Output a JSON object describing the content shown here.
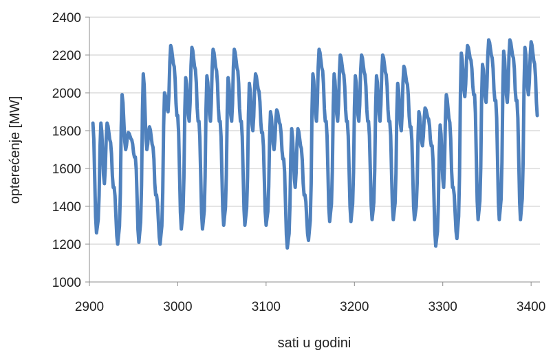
{
  "chart_data": {
    "type": "line",
    "title": "",
    "xlabel": "sati u godini",
    "ylabel": "opterećenje [MW]",
    "xlim": [
      2900,
      3410
    ],
    "ylim": [
      1000,
      2400
    ],
    "xticks": [
      2900,
      3000,
      3100,
      3200,
      3300,
      3400
    ],
    "yticks": [
      1000,
      1200,
      1400,
      1600,
      1800,
      2000,
      2200,
      2400
    ],
    "grid": "horizontal",
    "legend": "none",
    "line_color": "#4F81BD",
    "days": [
      {
        "start": 2904,
        "min": 1260,
        "p1": 1840,
        "dip": 1520,
        "p2": 1840,
        "end_dip": 1500
      },
      {
        "start": 2928,
        "min": 1200,
        "p1": 1990,
        "dip": 1700,
        "p2": 1790,
        "end_dip": 1660
      },
      {
        "start": 2952,
        "min": 1210,
        "p1": 2100,
        "dip": 1700,
        "p2": 1820,
        "end_dip": 1460
      },
      {
        "start": 2976,
        "min": 1200,
        "p1": 2000,
        "dip": 1900,
        "p2": 2250,
        "end_dip": 1880
      },
      {
        "start": 3000,
        "min": 1280,
        "p1": 2080,
        "dip": 1850,
        "p2": 2240,
        "end_dip": 1850
      },
      {
        "start": 3024,
        "min": 1280,
        "p1": 2090,
        "dip": 1850,
        "p2": 2230,
        "end_dip": 1850
      },
      {
        "start": 3048,
        "min": 1300,
        "p1": 2080,
        "dip": 1850,
        "p2": 2230,
        "end_dip": 1850
      },
      {
        "start": 3072,
        "min": 1300,
        "p1": 2050,
        "dip": 1800,
        "p2": 2100,
        "end_dip": 1790
      },
      {
        "start": 3096,
        "min": 1300,
        "p1": 1900,
        "dip": 1700,
        "p2": 1910,
        "end_dip": 1650
      },
      {
        "start": 3120,
        "min": 1180,
        "p1": 1810,
        "dip": 1500,
        "p2": 1810,
        "end_dip": 1460
      },
      {
        "start": 3144,
        "min": 1220,
        "p1": 2100,
        "dip": 1850,
        "p2": 2230,
        "end_dip": 1850
      },
      {
        "start": 3168,
        "min": 1320,
        "p1": 2100,
        "dip": 1850,
        "p2": 2200,
        "end_dip": 1850
      },
      {
        "start": 3192,
        "min": 1320,
        "p1": 2090,
        "dip": 1850,
        "p2": 2200,
        "end_dip": 1850
      },
      {
        "start": 3216,
        "min": 1330,
        "p1": 2090,
        "dip": 1850,
        "p2": 2200,
        "end_dip": 1850
      },
      {
        "start": 3240,
        "min": 1330,
        "p1": 2050,
        "dip": 1800,
        "p2": 2140,
        "end_dip": 1820
      },
      {
        "start": 3264,
        "min": 1330,
        "p1": 1900,
        "dip": 1720,
        "p2": 1920,
        "end_dip": 1720
      },
      {
        "start": 3288,
        "min": 1190,
        "p1": 1830,
        "dip": 1500,
        "p2": 1990,
        "end_dip": 1500
      },
      {
        "start": 3312,
        "min": 1230,
        "p1": 2210,
        "dip": 1980,
        "p2": 2250,
        "end_dip": 1990
      },
      {
        "start": 3336,
        "min": 1330,
        "p1": 2150,
        "dip": 1950,
        "p2": 2280,
        "end_dip": 1960
      },
      {
        "start": 3360,
        "min": 1330,
        "p1": 2220,
        "dip": 1950,
        "p2": 2280,
        "end_dip": 1960
      },
      {
        "start": 3384,
        "min": 1330,
        "p1": 2240,
        "dip": 1990,
        "p2": 2270,
        "end_dip": 1880
      }
    ],
    "x_end": 3408
  }
}
